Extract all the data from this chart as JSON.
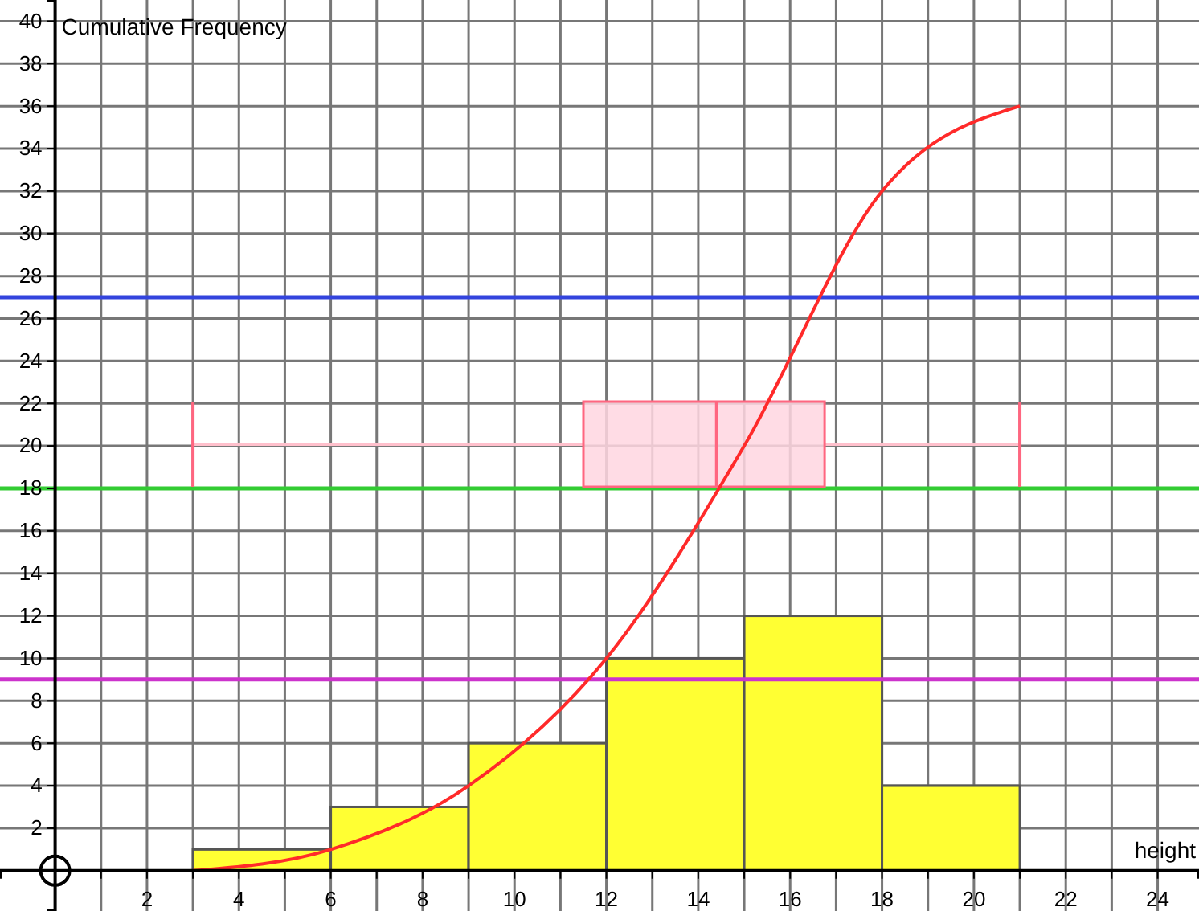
{
  "chart_data": [
    {
      "type": "histogram",
      "xlabel": "height",
      "ylabel": "Cumulative Frequency",
      "bins": [
        3,
        6,
        9,
        12,
        15,
        18,
        21
      ],
      "values": [
        1,
        3,
        6,
        10,
        12,
        4
      ],
      "color": "#ffff33",
      "series": [
        {
          "type": "line",
          "color": "#ff2a2a",
          "x": [
            3,
            6,
            9,
            12,
            15,
            18,
            21
          ],
          "values": [
            0,
            1,
            4,
            10,
            20,
            32,
            36
          ]
        }
      ],
      "ref_lines": [
        {
          "axis": "y",
          "value": 27,
          "color": "#3344dd"
        },
        {
          "axis": "y",
          "value": 18,
          "color": "#33cc33"
        },
        {
          "axis": "y",
          "value": 9,
          "color": "#cc33cc"
        }
      ],
      "xlim": [
        -1.2,
        24.9
      ],
      "ylim": [
        -1.9,
        41
      ],
      "xticks": [
        {
          "value": 1,
          "label": null
        },
        2,
        {
          "value": 3,
          "label": null
        },
        4,
        {
          "value": 5,
          "label": null
        },
        6,
        {
          "value": 7,
          "label": null
        },
        8,
        {
          "value": 9,
          "label": null
        },
        10,
        {
          "value": 11,
          "label": null
        },
        12,
        {
          "value": 13,
          "label": null
        },
        14,
        {
          "value": 15,
          "label": null
        },
        16,
        {
          "value": 17,
          "label": null
        },
        18,
        {
          "value": 19,
          "label": null
        },
        20,
        {
          "value": 21,
          "label": null
        },
        22,
        {
          "value": 23,
          "label": null
        },
        24
      ],
      "yticks": [
        2,
        4,
        6,
        8,
        10,
        12,
        14,
        16,
        18,
        20,
        22,
        24,
        26,
        28,
        30,
        32,
        34,
        36,
        38,
        40
      ],
      "grid": true
    },
    {
      "type": "box",
      "orientation": "horizontal",
      "categories": [
        null
      ],
      "color": "#ff6680",
      "boxes": [
        {
          "low": 3,
          "q1": 11.5,
          "median": 14.4,
          "q3": 16.75,
          "high": 21
        }
      ],
      "xlim": [
        -1.2,
        24.9
      ],
      "tick_labels": false
    }
  ]
}
